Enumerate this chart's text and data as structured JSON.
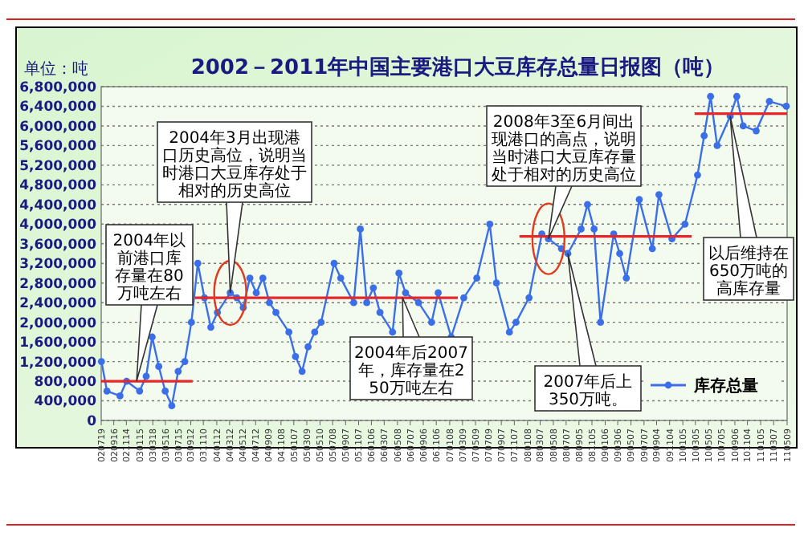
{
  "chart_data": {
    "type": "line",
    "title": "2002－2011年中国主要港口大豆库存总量日报图（吨）",
    "ylabel": "单位：吨",
    "marker": "circle",
    "line_style": "solid",
    "grid": "y",
    "legend": "bottom right",
    "xlim": [
      "2002-07-19",
      "2011-05-09"
    ],
    "ylim": [
      0,
      6800000
    ],
    "yticks": [
      0,
      {
        "value": 400000,
        "label": "400,000"
      },
      {
        "value": 800000,
        "label": "800,000"
      },
      {
        "value": 1200000,
        "label": "1,200,000"
      },
      {
        "value": 1600000,
        "label": "1,600,000"
      },
      {
        "value": 2000000,
        "label": "2,000,000"
      },
      {
        "value": 2400000,
        "label": "2,400,000"
      },
      {
        "value": 2800000,
        "label": "2,800,000"
      },
      {
        "value": 3200000,
        "label": "3,200,000"
      },
      {
        "value": 3600000,
        "label": "3,600,000"
      },
      {
        "value": 4000000,
        "label": "4,000,000"
      },
      {
        "value": 4400000,
        "label": "4,400,000"
      },
      {
        "value": 4800000,
        "label": "4,800,000"
      },
      {
        "value": 5200000,
        "label": "5,200,000"
      },
      {
        "value": 5600000,
        "label": "5,600,000"
      },
      {
        "value": 6000000,
        "label": "6,000,000"
      },
      {
        "value": 6400000,
        "label": "6,400,000"
      },
      {
        "value": 6800000,
        "label": "6,800,000"
      }
    ],
    "xticks": [
      {
        "value": "2002-07-19",
        "label": "020719"
      },
      {
        "value": "2002-09-16",
        "label": "020916"
      },
      {
        "value": "2002-11-14",
        "label": "021114"
      },
      {
        "value": "2003-01-15",
        "label": "030115"
      },
      {
        "value": "2003-03-18",
        "label": "030318"
      },
      {
        "value": "2003-05-16",
        "label": "030516"
      },
      {
        "value": "2003-07-15",
        "label": "030715"
      },
      {
        "value": "2003-09-12",
        "label": "030912"
      },
      {
        "value": "2003-11-10",
        "label": "031110"
      },
      {
        "value": "2004-01-12",
        "label": "040112"
      },
      {
        "value": "2004-03-12",
        "label": "040312"
      },
      {
        "value": "2004-05-12",
        "label": "040512"
      },
      {
        "value": "2004-07-12",
        "label": "040712"
      },
      {
        "value": "2004-09-09",
        "label": "040909"
      },
      {
        "value": "2004-11-08",
        "label": "041108"
      },
      {
        "value": "2005-01-07",
        "label": "050107"
      },
      {
        "value": "2005-03-09",
        "label": "050309"
      },
      {
        "value": "2005-05-10",
        "label": "050510"
      },
      {
        "value": "2005-07-08",
        "label": "050708"
      },
      {
        "value": "2005-09-07",
        "label": "050907"
      },
      {
        "value": "2005-11-07",
        "label": "051107"
      },
      {
        "value": "2006-01-06",
        "label": "060106"
      },
      {
        "value": "2006-03-07",
        "label": "060307"
      },
      {
        "value": "2006-05-08",
        "label": "060508"
      },
      {
        "value": "2006-07-07",
        "label": "060707"
      },
      {
        "value": "2006-09-06",
        "label": "060906"
      },
      {
        "value": "2006-11-06",
        "label": "061106"
      },
      {
        "value": "2007-01-08",
        "label": "070108"
      },
      {
        "value": "2007-03-09",
        "label": "070309"
      },
      {
        "value": "2007-05-09",
        "label": "070509"
      },
      {
        "value": "2007-07-09",
        "label": "070709"
      },
      {
        "value": "2007-09-07",
        "label": "070907"
      },
      {
        "value": "2007-11-07",
        "label": "071107"
      },
      {
        "value": "2008-01-08",
        "label": "080108"
      },
      {
        "value": "2008-03-07",
        "label": "080307"
      },
      {
        "value": "2008-05-08",
        "label": "080508"
      },
      {
        "value": "2008-07-07",
        "label": "080707"
      },
      {
        "value": "2008-09-05",
        "label": "080905"
      },
      {
        "value": "2008-11-05",
        "label": "081105"
      },
      {
        "value": "2009-01-06",
        "label": "090106"
      },
      {
        "value": "2009-03-06",
        "label": "090306"
      },
      {
        "value": "2009-05-07",
        "label": "090507"
      },
      {
        "value": "2009-07-07",
        "label": "090707"
      },
      {
        "value": "2009-09-04",
        "label": "090904"
      },
      {
        "value": "2009-11-04",
        "label": "091104"
      },
      {
        "value": "2010-01-05",
        "label": "100105"
      },
      {
        "value": "2010-03-05",
        "label": "100305"
      },
      {
        "value": "2010-05-05",
        "label": "100505"
      },
      {
        "value": "2010-07-05",
        "label": "100705"
      },
      {
        "value": "2010-09-06",
        "label": "100906"
      },
      {
        "value": "2010-11-04",
        "label": "101104"
      },
      {
        "value": "2011-01-05",
        "label": "110105"
      },
      {
        "value": "2011-03-07",
        "label": "110307"
      },
      {
        "value": "2011-05-09",
        "label": "110509"
      }
    ],
    "series": [
      {
        "name": "库存总量",
        "color": "#3b6fe8",
        "x": [
          "2002-07-20",
          "2002-08-15",
          "2002-10-15",
          "2002-11-15",
          "2003-01-15",
          "2003-02-15",
          "2003-03-15",
          "2003-04-15",
          "2003-05-15",
          "2003-06-15",
          "2003-07-15",
          "2003-08-15",
          "2003-09-15",
          "2003-10-15",
          "2003-11-15",
          "2003-12-15",
          "2004-01-15",
          "2004-03-15",
          "2004-04-15",
          "2004-05-15",
          "2004-06-15",
          "2004-07-15",
          "2004-08-15",
          "2004-09-15",
          "2004-10-15",
          "2004-12-15",
          "2005-01-15",
          "2005-02-15",
          "2005-03-15",
          "2005-04-15",
          "2005-05-15",
          "2005-07-15",
          "2005-08-15",
          "2005-10-15",
          "2005-11-15",
          "2005-12-15",
          "2006-01-15",
          "2006-02-15",
          "2006-04-15",
          "2006-05-15",
          "2006-06-15",
          "2006-08-15",
          "2006-10-15",
          "2006-11-15",
          "2007-01-15",
          "2007-03-15",
          "2007-05-15",
          "2007-07-15",
          "2007-08-15",
          "2007-10-15",
          "2007-11-15",
          "2008-01-15",
          "2008-03-15",
          "2008-04-15",
          "2008-06-15",
          "2008-07-15",
          "2008-09-15",
          "2008-10-15",
          "2008-11-15",
          "2008-12-15",
          "2009-02-15",
          "2009-03-15",
          "2009-04-15",
          "2009-06-15",
          "2009-08-15",
          "2009-09-15",
          "2009-11-15",
          "2010-01-15",
          "2010-03-15",
          "2010-04-15",
          "2010-05-15",
          "2010-06-15",
          "2010-08-15",
          "2010-09-15",
          "2010-10-15",
          "2010-12-15",
          "2011-02-15",
          "2011-05-05"
        ],
        "values": [
          1200000,
          600000,
          500000,
          800000,
          600000,
          900000,
          1700000,
          1100000,
          600000,
          300000,
          1000000,
          1200000,
          2000000,
          3200000,
          2500000,
          1900000,
          2200000,
          2600000,
          2500000,
          2300000,
          2900000,
          2600000,
          2900000,
          2400000,
          2200000,
          1800000,
          1300000,
          1000000,
          1500000,
          1800000,
          2000000,
          3200000,
          2900000,
          2400000,
          3900000,
          2400000,
          2700000,
          2200000,
          1800000,
          3000000,
          2600000,
          2400000,
          2000000,
          2600000,
          1700000,
          2500000,
          2900000,
          4000000,
          2800000,
          1800000,
          2000000,
          2500000,
          3800000,
          3700000,
          3500000,
          3400000,
          3900000,
          4400000,
          3900000,
          2000000,
          3800000,
          3400000,
          2900000,
          4500000,
          3500000,
          4600000,
          3700000,
          4000000,
          5000000,
          5800000,
          6600000,
          5600000,
          6200000,
          6600000,
          6000000,
          5900000,
          6500000,
          6400000
        ]
      },
      {
        "color": "#e8262a",
        "marker": "none",
        "x": [
          "2002-07-19",
          "2003-09-20"
        ],
        "values": [
          800000,
          800000
        ]
      },
      {
        "color": "#e8262a",
        "marker": "none",
        "x": [
          "2003-10-01",
          "2007-02-15"
        ],
        "values": [
          2500000,
          2500000
        ]
      },
      {
        "color": "#e8262a",
        "marker": "none",
        "x": [
          "2007-12-01",
          "2010-02-15"
        ],
        "values": [
          3750000,
          3750000
        ]
      },
      {
        "color": "#e8262a",
        "marker": "none",
        "x": [
          "2010-03-01",
          "2011-05-09"
        ],
        "values": [
          6250000,
          6250000
        ]
      }
    ],
    "annotations": [
      {
        "text": "2004年3月出现港口历史高位，说明当时港口大豆库存处于相对的历史高位",
        "x": "2004-03-15",
        "y": 2600000
      },
      {
        "text": "2004年以前港口库存量在80万吨左右",
        "x": "2003-01-01",
        "y": 800000
      },
      {
        "text": "2004年后2007年，库存量在250万吨左右",
        "x": "2006-06-01",
        "y": 2500000
      },
      {
        "text": "2008年3至6月间出现港口的高点，说明当时港口大豆库存量处于相对的历史高位",
        "x": "2008-04-15",
        "y": 3700000
      },
      {
        "text": "2007年后上350万吨。",
        "x": "2008-07-15",
        "y": 3400000
      },
      {
        "text": "以后维持在650万吨的高库存量",
        "x": "2010-08-15",
        "y": 6200000
      }
    ]
  }
}
